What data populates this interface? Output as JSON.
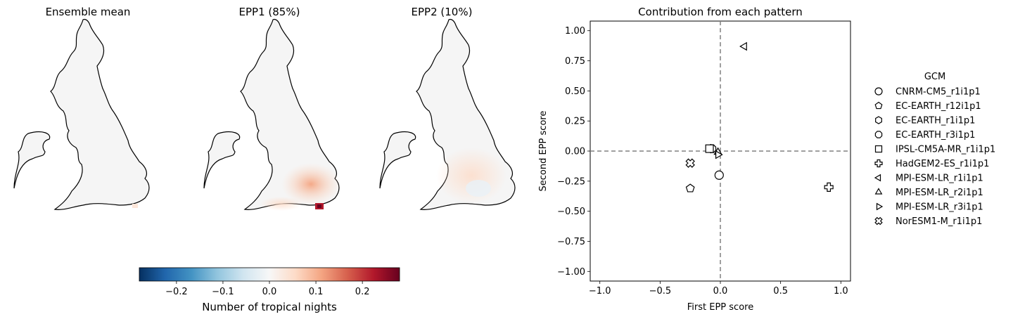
{
  "maps": {
    "panels": [
      {
        "title": "Ensemble mean"
      },
      {
        "title": "EPP1 (85%)"
      },
      {
        "title": "EPP2 (10%)"
      }
    ],
    "colorbar": {
      "label": "Number of tropical nights",
      "range": [
        -0.28,
        0.28
      ],
      "ticks": [
        "−0.2",
        "−0.1",
        "0.0",
        "0.1",
        "0.2"
      ],
      "tick_values": [
        -0.2,
        -0.1,
        0.0,
        0.1,
        0.2
      ],
      "colormap": [
        "#053061",
        "#2166ac",
        "#4393c3",
        "#92c5de",
        "#d1e5f0",
        "#f7f7f7",
        "#fddbc7",
        "#f4a582",
        "#d6604d",
        "#b2182b",
        "#67001f"
      ]
    }
  },
  "chart_data": {
    "type": "scatter",
    "title": "Contribution from each pattern",
    "xlabel": "First EPP score",
    "ylabel": "Second EPP score",
    "xlim": [
      -1.08,
      1.08
    ],
    "ylim": [
      -1.08,
      1.08
    ],
    "xticks": [
      -1.0,
      -0.5,
      0.0,
      0.5,
      1.0
    ],
    "xtick_labels": [
      "−1.0",
      "−0.5",
      "0.0",
      "0.5",
      "1.0"
    ],
    "yticks": [
      1.0,
      0.75,
      0.5,
      0.25,
      0.0,
      -0.25,
      -0.5,
      -0.75,
      -1.0
    ],
    "ytick_labels": [
      "1.00",
      "0.75",
      "0.50",
      "0.25",
      "0.00",
      "−0.25",
      "−0.50",
      "−0.75",
      "−1.00"
    ],
    "reference_lines": {
      "x": 0,
      "y": 0,
      "style": "dashed",
      "color": "#808080"
    },
    "grid": false,
    "legend": {
      "title": "GCM",
      "placement": "right, outside axes"
    },
    "series": [
      {
        "name": "CNRM-CM5_r1i1p1",
        "marker": "circle",
        "x": -0.01,
        "y": -0.2
      },
      {
        "name": "EC-EARTH_r12i1p1",
        "marker": "pentagon",
        "x": -0.25,
        "y": -0.31
      },
      {
        "name": "EC-EARTH_r1i1p1",
        "marker": "hexagon",
        "x": -0.08,
        "y": 0.02
      },
      {
        "name": "EC-EARTH_r3i1p1",
        "marker": "octagon",
        "x": -0.07,
        "y": 0.02
      },
      {
        "name": "IPSL-CM5A-MR_r1i1p1",
        "marker": "square",
        "x": -0.09,
        "y": 0.02
      },
      {
        "name": "HadGEM2-ES_r1i1p1",
        "marker": "plus",
        "x": 0.9,
        "y": -0.3
      },
      {
        "name": "MPI-ESM-LR_r1i1p1",
        "marker": "triangle-left",
        "x": 0.2,
        "y": 0.87
      },
      {
        "name": "MPI-ESM-LR_r2i1p1",
        "marker": "triangle-up",
        "x": -0.02,
        "y": -0.01
      },
      {
        "name": "MPI-ESM-LR_r3i1p1",
        "marker": "triangle-right",
        "x": -0.02,
        "y": -0.03
      },
      {
        "name": "NorESM1-M_r1i1p1",
        "marker": "x-filled",
        "x": -0.25,
        "y": -0.1
      }
    ]
  }
}
